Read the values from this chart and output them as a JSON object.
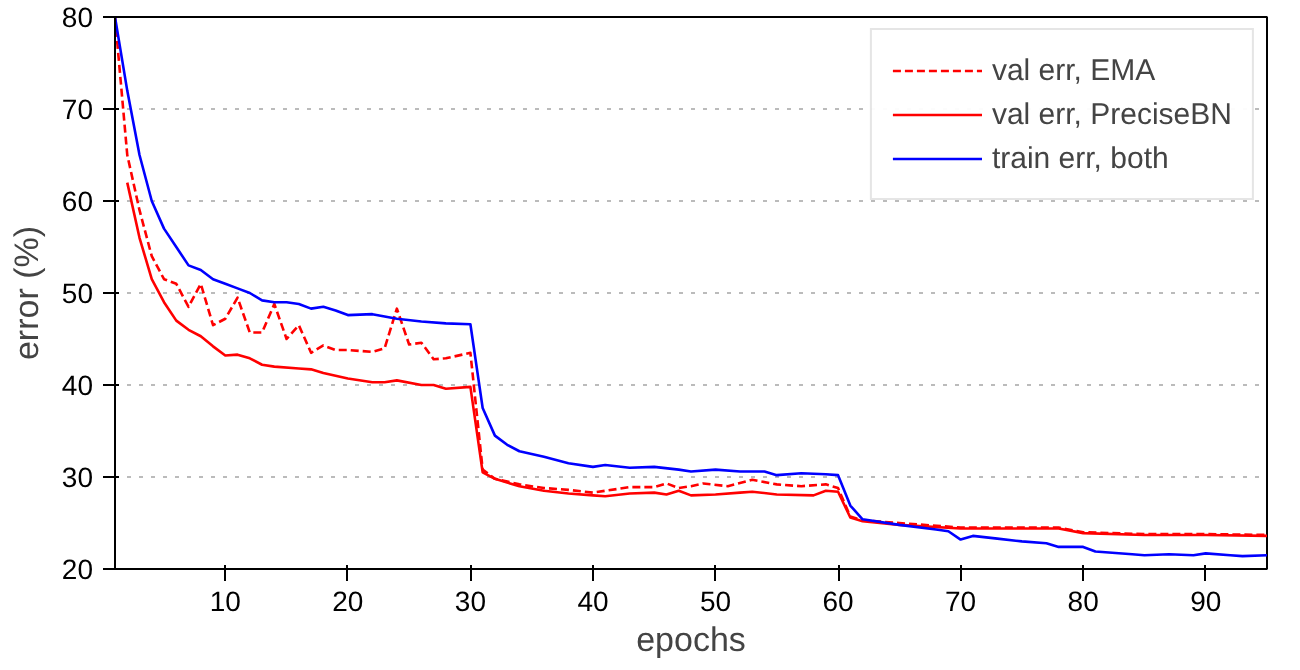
{
  "chart_data": {
    "type": "line",
    "xlabel": "epochs",
    "ylabel": "error (%)",
    "xlim": [
      1,
      95
    ],
    "ylim": [
      20,
      80
    ],
    "xticks": [
      10,
      20,
      30,
      40,
      50,
      60,
      70,
      80,
      90
    ],
    "yticks": [
      20,
      30,
      40,
      50,
      60,
      70,
      80
    ],
    "grid": "y",
    "legend": "top right",
    "series": [
      {
        "name": "val err, EMA",
        "color": "#ff0000",
        "line_style": "dashed",
        "x": [
          1,
          2,
          3,
          4,
          5,
          6,
          7,
          8,
          9,
          10,
          11,
          12,
          13,
          14,
          15,
          16,
          17,
          18,
          19,
          20,
          22,
          23,
          24,
          25,
          26,
          27,
          28,
          30,
          31,
          32,
          34,
          36,
          38,
          40,
          41,
          43,
          45,
          46,
          47,
          48,
          49,
          51,
          53,
          55,
          57,
          59,
          60,
          61,
          62,
          65,
          70,
          75,
          78,
          80,
          85,
          90,
          95
        ],
        "values": [
          80,
          65,
          59,
          54,
          51.5,
          51,
          48.5,
          51,
          46.5,
          47.2,
          49.5,
          45.7,
          45.7,
          48.8,
          45,
          46.5,
          43.5,
          44.3,
          43.8,
          43.8,
          43.6,
          44,
          48.3,
          44.4,
          44.6,
          42.8,
          42.9,
          43.5,
          30.8,
          29.8,
          29.2,
          28.8,
          28.6,
          28.3,
          28.5,
          28.9,
          28.9,
          29.3,
          28.8,
          29.0,
          29.3,
          29.0,
          29.7,
          29.2,
          29.0,
          29.2,
          28.8,
          25.7,
          25.3,
          25.0,
          24.5,
          24.5,
          24.5,
          24.0,
          23.8,
          23.8,
          23.7
        ]
      },
      {
        "name": "val err, PreciseBN",
        "color": "#ff0000",
        "line_style": "solid",
        "x": [
          2,
          3,
          4,
          5,
          6,
          7,
          8,
          9,
          10,
          11,
          12,
          13,
          14,
          16,
          17,
          18,
          20,
          22,
          23,
          24,
          26,
          27,
          28,
          30,
          31,
          32,
          34,
          36,
          38,
          40,
          41,
          43,
          45,
          46,
          47,
          48,
          50,
          52,
          53,
          55,
          58,
          59,
          60,
          61,
          62,
          65,
          70,
          75,
          78,
          80,
          85,
          90,
          95
        ],
        "values": [
          62,
          56,
          51.5,
          49,
          47,
          46,
          45.3,
          44.2,
          43.2,
          43.3,
          42.9,
          42.2,
          42,
          41.8,
          41.7,
          41.3,
          40.7,
          40.3,
          40.3,
          40.5,
          40,
          40,
          39.6,
          39.8,
          30.5,
          29.8,
          29,
          28.5,
          28.2,
          28,
          27.9,
          28.2,
          28.3,
          28.1,
          28.5,
          28,
          28.1,
          28.3,
          28.4,
          28.1,
          28,
          28.5,
          28.4,
          25.6,
          25.2,
          24.8,
          24.4,
          24.4,
          24.4,
          23.9,
          23.7,
          23.7,
          23.6
        ]
      },
      {
        "name": "train err, both",
        "color": "#0000ff",
        "line_style": "solid",
        "x": [
          1,
          2,
          3,
          4,
          5,
          6,
          7,
          8,
          9,
          10,
          11,
          12,
          13,
          14,
          15,
          16,
          17,
          18,
          19,
          20,
          22,
          24,
          26,
          28,
          30,
          31,
          32,
          33,
          34,
          35,
          36,
          38,
          40,
          41,
          43,
          45,
          47,
          48,
          50,
          52,
          54,
          55,
          57,
          59,
          60,
          61,
          62,
          65,
          68,
          69,
          70,
          71,
          73,
          75,
          77,
          78,
          80,
          81,
          84,
          85,
          87,
          89,
          90,
          92,
          93,
          95
        ],
        "values": [
          80,
          72,
          65,
          60,
          57,
          55,
          53,
          52.5,
          51.5,
          51,
          50.5,
          50,
          49.2,
          49,
          49,
          48.8,
          48.3,
          48.5,
          48.1,
          47.6,
          47.7,
          47.2,
          46.9,
          46.7,
          46.6,
          37.5,
          34.5,
          33.5,
          32.8,
          32.5,
          32.2,
          31.5,
          31.1,
          31.3,
          31.0,
          31.1,
          30.8,
          30.6,
          30.8,
          30.6,
          30.6,
          30.2,
          30.4,
          30.3,
          30.2,
          26.9,
          25.4,
          24.8,
          24.3,
          24.1,
          23.2,
          23.6,
          23.3,
          23.0,
          22.8,
          22.4,
          22.4,
          21.9,
          21.6,
          21.5,
          21.6,
          21.5,
          21.7,
          21.5,
          21.4,
          21.5
        ]
      }
    ]
  }
}
